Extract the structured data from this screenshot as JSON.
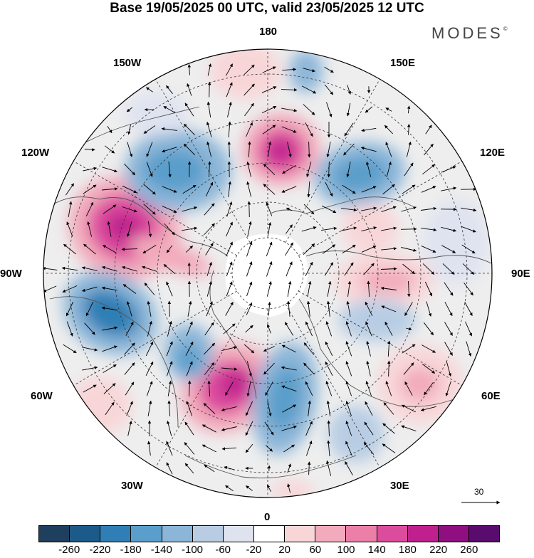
{
  "title": "Base 19/05/2025 00 UTC, valid 23/05/2025 12 UTC",
  "brand": "MODES",
  "brand_mark": "©",
  "lon_labels": [
    "180",
    "150E",
    "120E",
    "90E",
    "60E",
    "30E",
    "0",
    "30W",
    "60W",
    "90W",
    "120W",
    "150W"
  ],
  "vector_scale_label": "30",
  "colorbar": {
    "colors": [
      "#1f3f5e",
      "#1c5a8a",
      "#2f7fb6",
      "#5a9ecb",
      "#8cb6d8",
      "#b8cde4",
      "#dfe3f0",
      "#ffffff",
      "#f8d6d8",
      "#f2abbc",
      "#eb7fa8",
      "#dc4c9d",
      "#c0208e",
      "#8f0f80",
      "#5a0b6e"
    ],
    "tick_labels": [
      "-260",
      "-220",
      "-180",
      "-140",
      "-100",
      "-60",
      "-20",
      "20",
      "60",
      "100",
      "140",
      "180",
      "220",
      "260"
    ]
  }
}
